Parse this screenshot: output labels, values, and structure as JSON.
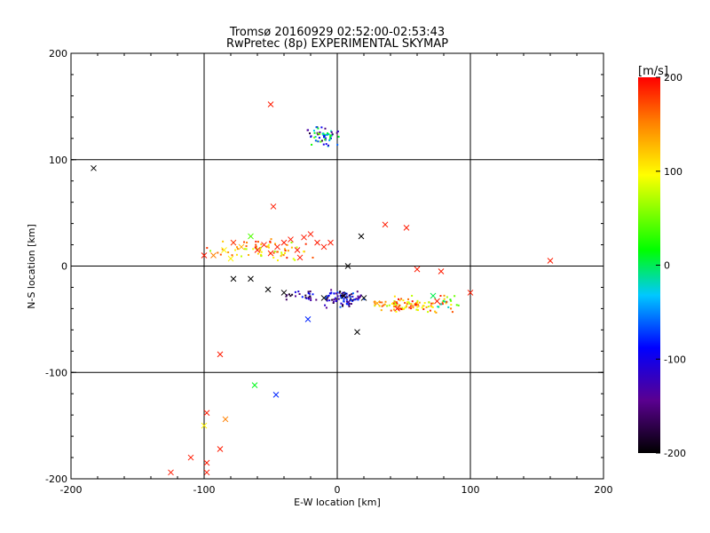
{
  "chart_data": {
    "type": "scatter",
    "title": "Tromsø 20160929 02:52:00-02:53:43",
    "subtitle": "RwPretec (8p) EXPERIMENTAL SKYMAP",
    "xlabel": "E-W location [km]",
    "ylabel": "N-S location [km]",
    "xlim": [
      -200,
      200
    ],
    "ylim": [
      -200,
      200
    ],
    "xticks": [
      -200,
      -100,
      0,
      100,
      200
    ],
    "yticks": [
      -200,
      -100,
      0,
      100,
      200
    ],
    "xtick_labels": [
      "-200",
      "-100",
      "0",
      "100",
      "200"
    ],
    "ytick_labels": [
      "-200",
      "-100",
      "0",
      "100",
      "200"
    ],
    "grid": true,
    "colorbar": {
      "label": "[m/s]",
      "min": -200,
      "max": 200,
      "ticks": [
        200,
        100,
        0,
        -100,
        -200
      ],
      "tick_labels": [
        "200",
        "100",
        "0",
        "-100",
        "-200"
      ]
    },
    "cross_points": [
      {
        "x": -183,
        "y": 92,
        "v": -200
      },
      {
        "x": -50,
        "y": 152,
        "v": 190
      },
      {
        "x": -48,
        "y": 56,
        "v": 190
      },
      {
        "x": 18,
        "y": 28,
        "v": -200
      },
      {
        "x": 36,
        "y": 39,
        "v": 190
      },
      {
        "x": 52,
        "y": 36,
        "v": 190
      },
      {
        "x": -100,
        "y": 10,
        "v": 190
      },
      {
        "x": -93,
        "y": 10,
        "v": 150
      },
      {
        "x": -85,
        "y": 15,
        "v": 100
      },
      {
        "x": -78,
        "y": 22,
        "v": 180
      },
      {
        "x": -72,
        "y": 18,
        "v": 130
      },
      {
        "x": -65,
        "y": 28,
        "v": 40
      },
      {
        "x": -60,
        "y": 15,
        "v": 190
      },
      {
        "x": -55,
        "y": 20,
        "v": 190
      },
      {
        "x": -50,
        "y": 12,
        "v": 190
      },
      {
        "x": -45,
        "y": 18,
        "v": 190
      },
      {
        "x": -40,
        "y": 22,
        "v": 190
      },
      {
        "x": -35,
        "y": 25,
        "v": 190
      },
      {
        "x": -30,
        "y": 15,
        "v": 190
      },
      {
        "x": -25,
        "y": 27,
        "v": 190
      },
      {
        "x": -20,
        "y": 30,
        "v": 190
      },
      {
        "x": -15,
        "y": 22,
        "v": 190
      },
      {
        "x": -10,
        "y": 18,
        "v": 190
      },
      {
        "x": -5,
        "y": 22,
        "v": 190
      },
      {
        "x": -28,
        "y": 8,
        "v": 190
      },
      {
        "x": -80,
        "y": 7,
        "v": 100
      },
      {
        "x": -78,
        "y": -12,
        "v": -200
      },
      {
        "x": -65,
        "y": -12,
        "v": -200
      },
      {
        "x": -52,
        "y": -22,
        "v": -200
      },
      {
        "x": -40,
        "y": -25,
        "v": -200
      },
      {
        "x": -22,
        "y": -50,
        "v": -80
      },
      {
        "x": 15,
        "y": -62,
        "v": -200
      },
      {
        "x": 8,
        "y": 0,
        "v": -200
      },
      {
        "x": 60,
        "y": -3,
        "v": 190
      },
      {
        "x": 78,
        "y": -5,
        "v": 190
      },
      {
        "x": 100,
        "y": -25,
        "v": 190
      },
      {
        "x": 72,
        "y": -28,
        "v": 0
      },
      {
        "x": 75,
        "y": -33,
        "v": 190
      },
      {
        "x": 45,
        "y": -40,
        "v": 190
      },
      {
        "x": 30,
        "y": -35,
        "v": 130
      },
      {
        "x": 20,
        "y": -30,
        "v": -200
      },
      {
        "x": 5,
        "y": -28,
        "v": -200
      },
      {
        "x": -10,
        "y": -30,
        "v": -200
      },
      {
        "x": 160,
        "y": 5,
        "v": 190
      },
      {
        "x": -88,
        "y": -83,
        "v": 190
      },
      {
        "x": -62,
        "y": -112,
        "v": 10
      },
      {
        "x": -46,
        "y": -121,
        "v": -80
      },
      {
        "x": -98,
        "y": -138,
        "v": 190
      },
      {
        "x": -84,
        "y": -144,
        "v": 150
      },
      {
        "x": -88,
        "y": -172,
        "v": 190
      },
      {
        "x": -110,
        "y": -180,
        "v": 190
      },
      {
        "x": -98,
        "y": -185,
        "v": 190
      },
      {
        "x": -125,
        "y": -194,
        "v": 190
      },
      {
        "x": -98,
        "y": -194,
        "v": 190
      },
      {
        "x": -100,
        "y": -150,
        "v": 100
      }
    ],
    "dot_clusters": [
      {
        "cx": -10,
        "cy": 122,
        "sx": 10,
        "sy": 8,
        "n": 60,
        "vmin": -200,
        "vmax": 60
      },
      {
        "cx": -55,
        "cy": 15,
        "sx": 30,
        "sy": 8,
        "n": 70,
        "vmin": 60,
        "vmax": 200
      },
      {
        "cx": 5,
        "cy": -30,
        "sx": 15,
        "sy": 7,
        "n": 90,
        "vmin": -200,
        "vmax": -60
      },
      {
        "cx": 50,
        "cy": -36,
        "sx": 22,
        "sy": 6,
        "n": 90,
        "vmin": 60,
        "vmax": 200
      },
      {
        "cx": 80,
        "cy": -35,
        "sx": 10,
        "sy": 8,
        "n": 25,
        "vmin": -40,
        "vmax": 200
      },
      {
        "cx": -30,
        "cy": -28,
        "sx": 12,
        "sy": 5,
        "n": 25,
        "vmin": -200,
        "vmax": -80
      }
    ]
  }
}
